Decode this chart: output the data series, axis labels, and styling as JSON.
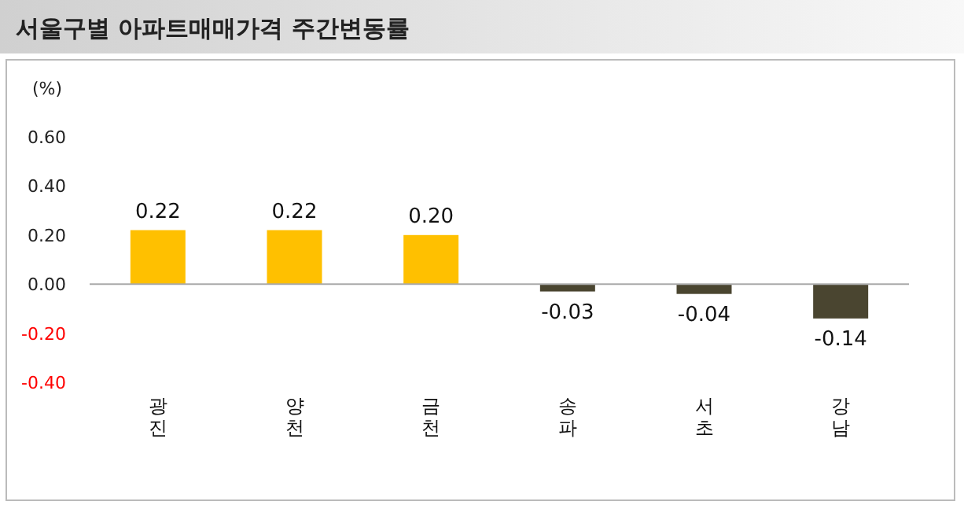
{
  "chart_data": {
    "type": "bar",
    "title": "서울구별 아파트매매가격 주간변동률",
    "ylabel": "(%)",
    "categories": [
      "광진",
      "양천",
      "금천",
      "송파",
      "서초",
      "강남"
    ],
    "values": [
      0.22,
      0.22,
      0.2,
      -0.03,
      -0.04,
      -0.14
    ],
    "colors": [
      "#ffc000",
      "#ffc000",
      "#ffc000",
      "#4a4530",
      "#4a4530",
      "#4a4530"
    ],
    "value_labels": [
      "0.22",
      "0.22",
      "0.20",
      "-0.03",
      "-0.04",
      "-0.14"
    ],
    "ylim": [
      -0.4,
      0.6
    ],
    "yticks": [
      {
        "value": 0.6,
        "label": "0.60"
      },
      {
        "value": 0.4,
        "label": "0.40"
      },
      {
        "value": 0.2,
        "label": "0.20"
      },
      {
        "value": 0,
        "label": "0.00"
      },
      {
        "value": -0.2,
        "label": "-0.20"
      },
      {
        "value": -0.4,
        "label": "-0.40"
      }
    ],
    "orientation": "vertical"
  }
}
